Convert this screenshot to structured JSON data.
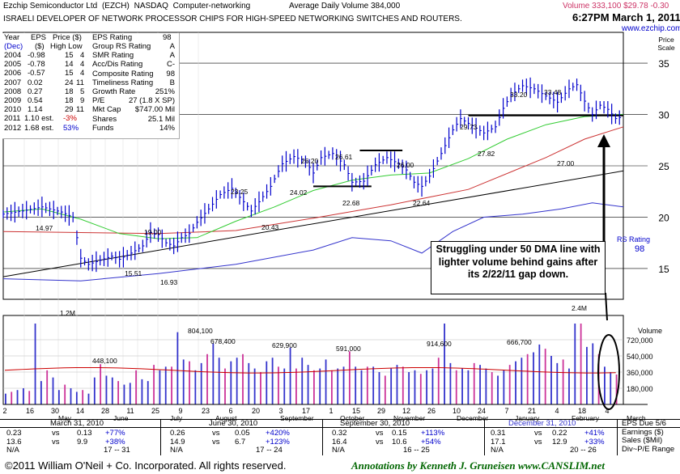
{
  "header": {
    "company": "Ezchip Semiconductor Ltd",
    "ticker": "(EZCH)",
    "exchange": "NASDAQ",
    "industry": "Computer-networking",
    "avg_volume": "Average Daily Volume 384,000",
    "description": "ISRAELI DEVELOPER OF NETWORK PROCESSOR CHIPS FOR HIGH-SPEED NETWORKING SWITCHES AND ROUTERS.",
    "volume_info": "Volume 333,100",
    "price_info": "$29.78",
    "change_info": "-0.30",
    "datetime": "6:27PM March 1, 2011",
    "website": "www.ezchip.com"
  },
  "fundamentals": {
    "headers": [
      "Year",
      "EPS",
      "Price ($)",
      "EPS Rating",
      "98"
    ],
    "subheaders": [
      "(Dec)",
      "($)",
      "High Low"
    ],
    "rows": [
      {
        "year": "2004",
        "eps": "-0.98",
        "high": "15",
        "low": "4"
      },
      {
        "year": "2005",
        "eps": "-0.78",
        "high": "14",
        "low": "4"
      },
      {
        "year": "2006",
        "eps": "-0.57",
        "high": "15",
        "low": "4"
      },
      {
        "year": "2007",
        "eps": "0.02",
        "high": "24",
        "low": "11"
      },
      {
        "year": "2008",
        "eps": "0.27",
        "high": "18",
        "low": "5"
      },
      {
        "year": "2009",
        "eps": "0.54",
        "high": "18",
        "low": "9"
      },
      {
        "year": "2010",
        "eps": "1.14",
        "high": "29",
        "low": "11"
      },
      {
        "year": "2011",
        "eps": "1.10 est.",
        "high": "-3%",
        "low": ""
      },
      {
        "year": "2012",
        "eps": "1.68 est.",
        "high": "53%",
        "low": ""
      }
    ],
    "ratings": [
      {
        "label": "Group RS Rating",
        "value": "A"
      },
      {
        "label": "SMR Rating",
        "value": "A"
      },
      {
        "label": "Acc/Dis Rating",
        "value": "C-"
      },
      {
        "label": "Composite Rating",
        "value": "98"
      },
      {
        "label": "Timeliness Rating",
        "value": "B"
      },
      {
        "label": "Growth Rate",
        "value": "251%"
      },
      {
        "label": "P/E",
        "value": "27 (1.8 X SP)"
      },
      {
        "label": "Mkt Cap",
        "value": "$747.00 Mil"
      },
      {
        "label": "Shares",
        "value": "25.1 Mil"
      },
      {
        "label": "Funds",
        "value": "14%"
      }
    ]
  },
  "annotation": {
    "callout": "Struggling under 50 DMA line with lighter volume behind gains after its 2/22/11 gap down."
  },
  "quarters": {
    "dates": [
      "March 31, 2010",
      "June 30, 2010",
      "September 30, 2010",
      "December 31, 2010"
    ],
    "row1": [
      "0.23",
      "vs",
      "0.13",
      "+77%",
      "0.26",
      "vs",
      "0.05",
      "+420%",
      "0.32",
      "vs",
      "0.15",
      "+113%",
      "0.31",
      "vs",
      "0.22",
      "+41%"
    ],
    "row2": [
      "13.6",
      "vs",
      "9.9",
      "+38%",
      "14.9",
      "vs",
      "6.7",
      "+123%",
      "16.4",
      "vs",
      "10.6",
      "+54%",
      "17.1",
      "vs",
      "12.9",
      "+33%"
    ],
    "row3": [
      "N/A",
      "17 -- 31",
      "N/A",
      "17 -- 24",
      "N/A",
      "16 -- 25",
      "N/A",
      "20 -- 26"
    ],
    "legend": [
      "EPS Due 5/6",
      "Earnings ($)",
      "Sales ($Mil)",
      "Div~P/E Range"
    ]
  },
  "footer": {
    "copyright": "©2011 William O'Neil + Co. Incorporated. All rights reserved.",
    "annotations": "Annotations by Kenneth J. Gruneisen  www.CANSLIM.net"
  },
  "chart_data": {
    "type": "bar",
    "title": "",
    "price_scale_label": "Price Scale",
    "price_ticks": [
      15,
      20,
      25,
      30,
      35
    ],
    "ylim": [
      12,
      38
    ],
    "volume_ticks": [
      "180,000",
      "360,000",
      "540,000",
      "720,000"
    ],
    "volume_label": "Volume",
    "rs_label": "RS Rating",
    "rs_value": "98",
    "x_tick_labels": [
      "2",
      "16",
      "30",
      "14",
      "28",
      "11",
      "25",
      "9",
      "23",
      "6",
      "20",
      "3",
      "17",
      "1",
      "15",
      "29",
      "12",
      "26",
      "10",
      "24",
      "7",
      "21",
      "4",
      "18",
      "4"
    ],
    "month_labels": [
      "May",
      "June",
      "July",
      "August",
      "September",
      "October",
      "November",
      "December",
      "January",
      "February",
      "March"
    ],
    "price_labels": [
      "14.97",
      "1.2M",
      "15.51",
      "19.00",
      "16.93",
      "23.25",
      "20.43",
      "26.20",
      "24.02",
      "26.61",
      "22.68",
      "26.00",
      "22.64",
      "29.73",
      "27.82",
      "33.20",
      "33.48",
      "27.00"
    ],
    "volume_labels": [
      "448,100",
      "804,100",
      "678,400",
      "629,900",
      "591,000",
      "914,600",
      "666,700",
      "2.4M"
    ],
    "price_path": [
      [
        0,
        20.3
      ],
      [
        5,
        20.6
      ],
      [
        10,
        21.0
      ],
      [
        15,
        20.5
      ],
      [
        18,
        20.0
      ],
      [
        20,
        16.0
      ],
      [
        22,
        15.4
      ],
      [
        25,
        15.8
      ],
      [
        28,
        16.2
      ],
      [
        30,
        15.9
      ],
      [
        33,
        16.5
      ],
      [
        36,
        17.2
      ],
      [
        38,
        18.5
      ],
      [
        40,
        18.3
      ],
      [
        42,
        17.5
      ],
      [
        44,
        17.2
      ],
      [
        46,
        18.0
      ],
      [
        48,
        18.4
      ],
      [
        50,
        19.5
      ],
      [
        53,
        20.8
      ],
      [
        56,
        22.2
      ],
      [
        59,
        22.8
      ],
      [
        62,
        21.5
      ],
      [
        64,
        20.6
      ],
      [
        66,
        21.5
      ],
      [
        69,
        23.0
      ],
      [
        72,
        25.2
      ],
      [
        75,
        25.9
      ],
      [
        78,
        25.4
      ],
      [
        80,
        24.3
      ],
      [
        82,
        25.8
      ],
      [
        85,
        26.2
      ],
      [
        88,
        25.1
      ],
      [
        90,
        23.4
      ],
      [
        93,
        23.5
      ],
      [
        96,
        25.1
      ],
      [
        99,
        25.8
      ],
      [
        102,
        25.2
      ],
      [
        104,
        24.6
      ],
      [
        106,
        23.4
      ],
      [
        108,
        23.0
      ],
      [
        110,
        24.0
      ],
      [
        113,
        26.2
      ],
      [
        116,
        28.5
      ],
      [
        118,
        29.6
      ],
      [
        121,
        28.9
      ],
      [
        124,
        28.2
      ],
      [
        127,
        28.8
      ],
      [
        129,
        30.6
      ],
      [
        131,
        31.9
      ],
      [
        134,
        32.8
      ],
      [
        137,
        32.5
      ],
      [
        140,
        31.8
      ],
      [
        143,
        31.2
      ],
      [
        146,
        32.5
      ],
      [
        148,
        32.9
      ],
      [
        150,
        31.3
      ],
      [
        152,
        30.0
      ],
      [
        154,
        30.9
      ],
      [
        156,
        30.5
      ],
      [
        158,
        29.6
      ],
      [
        160,
        29.8
      ]
    ],
    "dma50_path": [
      [
        0,
        20.5
      ],
      [
        10,
        20.8
      ],
      [
        20,
        19.8
      ],
      [
        30,
        18.4
      ],
      [
        40,
        17.9
      ],
      [
        50,
        18.0
      ],
      [
        60,
        19.6
      ],
      [
        70,
        21.0
      ],
      [
        80,
        22.6
      ],
      [
        90,
        23.6
      ],
      [
        100,
        24.1
      ],
      [
        110,
        24.3
      ],
      [
        120,
        25.7
      ],
      [
        130,
        27.6
      ],
      [
        140,
        29.0
      ],
      [
        150,
        29.8
      ],
      [
        160,
        30.0
      ]
    ],
    "dma200_path": [
      [
        0,
        18.6
      ],
      [
        20,
        18.5
      ],
      [
        40,
        18.4
      ],
      [
        60,
        18.7
      ],
      [
        80,
        19.9
      ],
      [
        100,
        21.2
      ],
      [
        120,
        22.7
      ],
      [
        140,
        25.8
      ],
      [
        150,
        27.6
      ],
      [
        160,
        28.8
      ]
    ],
    "rs_path": [
      [
        0,
        14.0
      ],
      [
        20,
        13.8
      ],
      [
        40,
        14.5
      ],
      [
        60,
        15.4
      ],
      [
        80,
        16.8
      ],
      [
        90,
        18.0
      ],
      [
        100,
        17.7
      ],
      [
        108,
        16.5
      ],
      [
        116,
        18.6
      ],
      [
        124,
        20.0
      ],
      [
        134,
        20.3
      ],
      [
        144,
        20.8
      ],
      [
        152,
        21.4
      ],
      [
        160,
        21.0
      ]
    ],
    "trend_line": [
      [
        0,
        14.2
      ],
      [
        160,
        24.5
      ]
    ],
    "volume_values": [
      120000,
      140000,
      160000,
      180000,
      150000,
      1200000,
      260000,
      380000,
      300000,
      160000,
      220000,
      180000,
      140000,
      160000,
      120000,
      300000,
      448100,
      320000,
      300000,
      260000,
      220000,
      240000,
      380000,
      280000,
      260000,
      440000,
      380000,
      420000,
      420000,
      804100,
      500000,
      480000,
      380000,
      460000,
      560000,
      678400,
      520000,
      400000,
      480000,
      520000,
      560000,
      460000,
      400000,
      360000,
      480000,
      520000,
      420000,
      400000,
      629900,
      400000,
      520000,
      440000,
      380000,
      400000,
      500000,
      380000,
      400000,
      420000,
      591000,
      420000,
      380000,
      420000,
      420000,
      360000,
      320000,
      400000,
      440000,
      420000,
      360000,
      380000,
      340000,
      380000,
      400000,
      520000,
      914600,
      460000,
      380000,
      400000,
      380000,
      460000,
      440000,
      400000,
      360000,
      320000,
      380000,
      440000,
      480000,
      520000,
      560000,
      580000,
      666700,
      620000,
      540000,
      460000,
      500000,
      400000,
      1100000,
      2400000,
      640000,
      680000,
      560000,
      420000,
      360000,
      333100
    ]
  }
}
